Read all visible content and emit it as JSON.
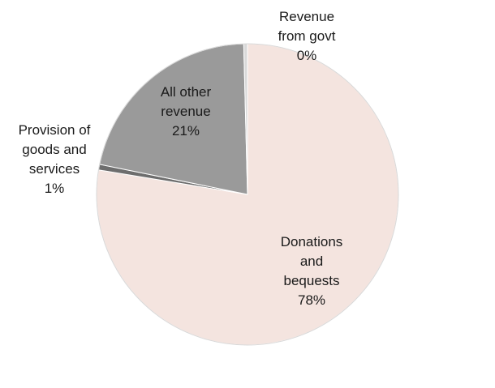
{
  "chart_data": {
    "type": "pie",
    "title": "",
    "legend": "none",
    "slices": [
      {
        "key": "donations",
        "label_lines": [
          "Donations",
          "and",
          "bequests"
        ],
        "percent_label": "78%",
        "value": 77.6,
        "color": "#f4e4df"
      },
      {
        "key": "goods",
        "label_lines": [
          "Provision of",
          "goods and",
          "services"
        ],
        "percent_label": "1%",
        "value": 0.6,
        "color": "#6d6d6d"
      },
      {
        "key": "other",
        "label_lines": [
          "All other",
          "revenue"
        ],
        "percent_label": "21%",
        "value": 21.4,
        "color": "#9a9a9a"
      },
      {
        "key": "govt",
        "label_lines": [
          "Revenue",
          "from govt"
        ],
        "percent_label": "0%",
        "value": 0.4,
        "color": "#d9d9d9"
      }
    ]
  }
}
